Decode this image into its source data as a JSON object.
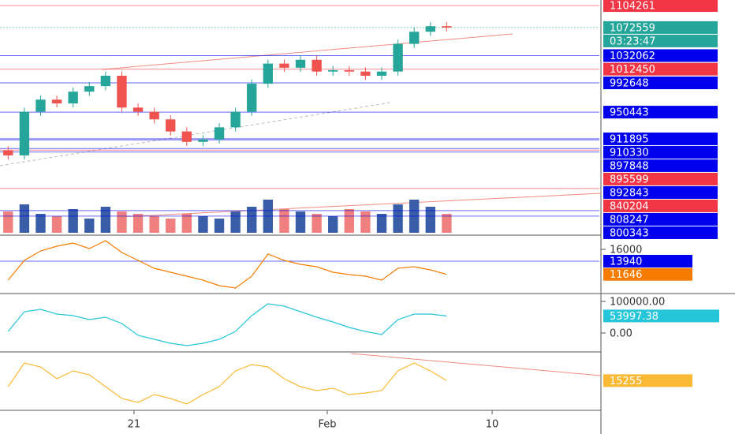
{
  "chart_data": [
    {
      "type": "candlestick",
      "x": [
        0,
        1,
        2,
        3,
        4,
        5,
        6,
        7,
        8,
        9,
        10,
        11,
        12,
        13,
        14,
        15,
        16,
        17,
        18,
        19,
        20,
        21,
        22,
        23,
        24,
        25,
        26,
        27
      ],
      "open": [
        895000,
        888000,
        951000,
        968500,
        963000,
        980000,
        988000,
        1003000,
        957000,
        951000,
        940000,
        922500,
        907500,
        911000,
        928500,
        951000,
        991500,
        1020500,
        1014500,
        1026000,
        1009000,
        1011000,
        1009000,
        1003000,
        1009000,
        1049000,
        1066500,
        1074500
      ],
      "high": [
        901000,
        957000,
        974500,
        974500,
        986000,
        994000,
        1009000,
        1009000,
        963000,
        957000,
        946000,
        928500,
        917000,
        934500,
        957000,
        997500,
        1026500,
        1026500,
        1032000,
        1032000,
        1017000,
        1017000,
        1015000,
        1015000,
        1055000,
        1072500,
        1080500,
        1080500
      ],
      "low": [
        882000,
        882000,
        945000,
        957000,
        957000,
        974000,
        982000,
        951000,
        945000,
        934000,
        916500,
        901500,
        901500,
        905000,
        922500,
        945000,
        985500,
        1008500,
        1008500,
        1003000,
        1003000,
        1003000,
        997000,
        997000,
        1003000,
        1043000,
        1060500,
        1066500
      ],
      "close": [
        888000,
        951000,
        968500,
        963000,
        980000,
        988000,
        1003000,
        957000,
        951000,
        940000,
        922500,
        907500,
        911000,
        928500,
        951000,
        991500,
        1020500,
        1014500,
        1026000,
        1009000,
        1011000,
        1009000,
        1003000,
        1009000,
        1049000,
        1066500,
        1074500,
        1072559
      ],
      "up_color": "#26a69a",
      "down_color": "#ef5350",
      "volume": [
        45,
        60,
        40,
        35,
        50,
        30,
        55,
        45,
        40,
        35,
        30,
        40,
        35,
        30,
        45,
        55,
        70,
        50,
        45,
        40,
        35,
        50,
        45,
        40,
        60,
        70,
        55,
        40
      ],
      "volume_ylim": [
        0,
        100
      ],
      "volume_up_color": "#3a5da8",
      "volume_down_color": "#f07f7f",
      "ylim": [
        772846,
        1112316
      ],
      "xlim": [
        -0.5,
        36.4
      ],
      "xticks": [
        {
          "value": 7.75,
          "label": "21"
        },
        {
          "value": 19.65,
          "label": "Feb"
        },
        {
          "value": 29.8,
          "label": "10"
        }
      ],
      "countdown": "03:23:47",
      "current_color": "#26a69a",
      "price_lines": [
        {
          "value": 1104261,
          "color": "#f23645"
        },
        {
          "value": 1072559,
          "color": "#26a69a"
        },
        {
          "value": 1032062,
          "color": "#0000ee"
        },
        {
          "value": 1012450,
          "color": "#f23645"
        },
        {
          "value": 992648,
          "color": "#0000ee"
        },
        {
          "value": 950443,
          "color": "#0000ee"
        },
        {
          "value": 911895,
          "color": "#0000ee"
        },
        {
          "value": 910330,
          "color": "#0000ee"
        },
        {
          "value": 897848,
          "color": "#0000ee"
        },
        {
          "value": 895599,
          "color": "#f23645"
        },
        {
          "value": 892843,
          "color": "#0000ee"
        },
        {
          "value": 840204,
          "color": "#f23645"
        },
        {
          "value": 808247,
          "color": "#0000ee"
        },
        {
          "value": 800343,
          "color": "#0000ee"
        }
      ]
    },
    {
      "type": "line",
      "color": "#f57c00",
      "values": [
        10641,
        14076,
        15725,
        16550,
        17099,
        16137,
        17511,
        15450,
        14076,
        12702,
        12015,
        11328,
        10641,
        9680,
        9267,
        11328,
        15176,
        14076,
        13389,
        12977,
        12015,
        11603,
        11328,
        10641,
        12702,
        12977,
        12427,
        11646
      ],
      "ylim": [
        8308,
        18472
      ],
      "yticks": [
        16000
      ],
      "price_lines": [
        {
          "value": 13940,
          "color": "#0000ee"
        }
      ]
    },
    {
      "type": "line",
      "color": "#26c6da",
      "values": [
        5000,
        67500,
        75000,
        60000,
        55000,
        42500,
        50000,
        30000,
        -7500,
        -20000,
        -32500,
        -40000,
        -32500,
        -20000,
        5000,
        55000,
        92500,
        85000,
        67500,
        50000,
        35000,
        17500,
        5000,
        -5000,
        42500,
        60000,
        60000,
        53997.38
      ],
      "ylim": [
        -60000,
        125000
      ],
      "yticks": [
        {
          "value": 100000,
          "label": "100000.00"
        },
        {
          "value": 0,
          "label": "0.00"
        }
      ]
    },
    {
      "type": "line",
      "color": "#f9b934",
      "values": [
        12162,
        24324,
        22297,
        16216,
        20270,
        18243,
        12162,
        6081,
        4054,
        8108,
        6081,
        3243,
        8108,
        12162,
        20270,
        23514,
        22297,
        16216,
        12162,
        10135,
        11351,
        8108,
        8919,
        10135,
        20270,
        24324,
        20270,
        15255
      ],
      "ylim": [
        0,
        30000
      ]
    }
  ]
}
